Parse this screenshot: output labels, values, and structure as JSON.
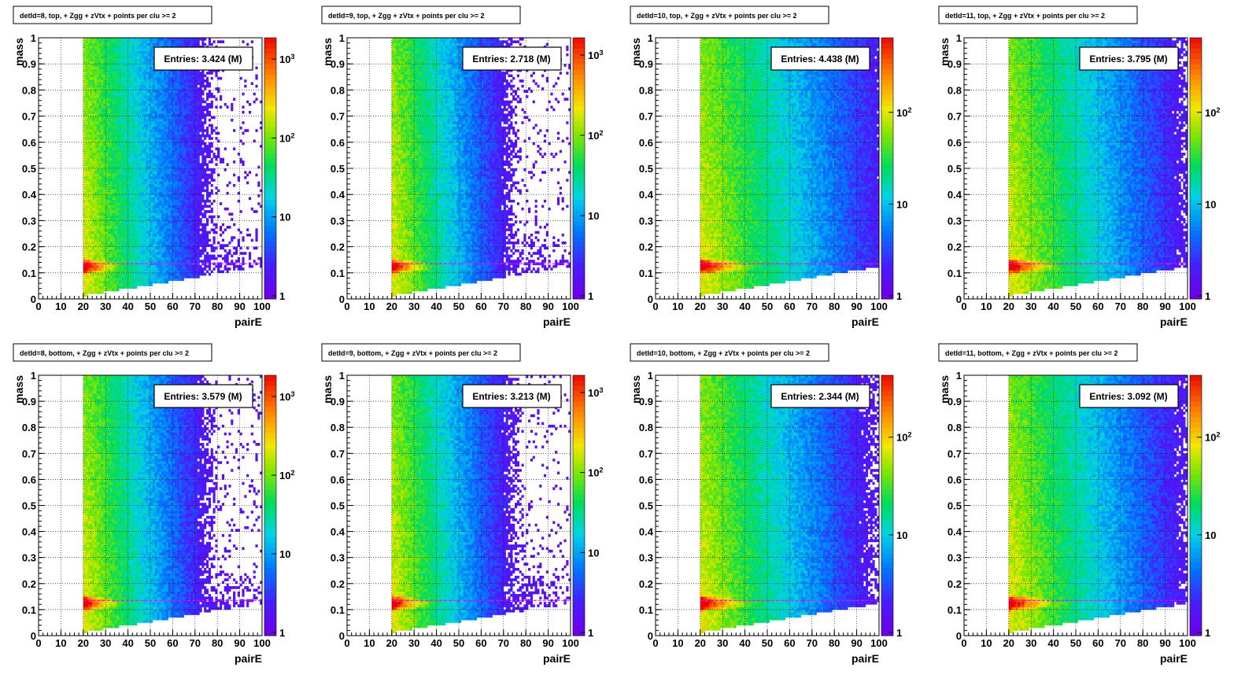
{
  "figure": {
    "description_free": true
  },
  "common": {
    "xlabel": "pairE",
    "ylabel": "mass",
    "x_ticks": [
      "0",
      "10",
      "20",
      "30",
      "40",
      "50",
      "60",
      "70",
      "80",
      "90",
      "100"
    ],
    "y_ticks": [
      "0",
      "0.1",
      "0.2",
      "0.3",
      "0.4",
      "0.5",
      "0.6",
      "0.7",
      "0.8",
      "0.9",
      "1"
    ],
    "reference_line_mass": 0.135,
    "reference_line_color": "#ff00ff"
  },
  "chart_data": [
    {
      "type": "heatmap",
      "title": "detId=8, top, + Zgg + zVtx + points per clu >= 2",
      "entries": "Entries: 3.424 (M)",
      "xlabel": "pairE",
      "ylabel": "mass",
      "xlim": [
        0,
        100
      ],
      "ylim": [
        0,
        1
      ],
      "z_log": true,
      "z_range": [
        1,
        1700
      ],
      "colorbar_ticks": [
        "1",
        "10",
        "10^2",
        "10^3"
      ],
      "spread": 0.45
    },
    {
      "type": "heatmap",
      "title": "detId=9, top, + Zgg + zVtx + points per clu >= 2",
      "entries": "Entries: 2.718 (M)",
      "xlabel": "pairE",
      "ylabel": "mass",
      "xlim": [
        0,
        100
      ],
      "ylim": [
        0,
        1
      ],
      "z_log": true,
      "z_range": [
        1,
        1500
      ],
      "colorbar_ticks": [
        "1",
        "10",
        "10^2",
        "10^3"
      ],
      "spread": 0.4
    },
    {
      "type": "heatmap",
      "title": "detId=10, top, + Zgg + zVtx + points per clu >= 2",
      "entries": "Entries: 4.438 (M)",
      "xlabel": "pairE",
      "ylabel": "mass",
      "xlim": [
        0,
        100
      ],
      "ylim": [
        0,
        1
      ],
      "z_log": true,
      "z_range": [
        1,
        600
      ],
      "colorbar_ticks": [
        "1",
        "10",
        "10^2"
      ],
      "spread": 1.0
    },
    {
      "type": "heatmap",
      "title": "detId=11, top, + Zgg + zVtx + points per clu >= 2",
      "entries": "Entries: 3.795 (M)",
      "xlabel": "pairE",
      "ylabel": "mass",
      "xlim": [
        0,
        100
      ],
      "ylim": [
        0,
        1
      ],
      "z_log": true,
      "z_range": [
        1,
        600
      ],
      "colorbar_ticks": [
        "1",
        "10",
        "10^2"
      ],
      "spread": 0.9
    },
    {
      "type": "heatmap",
      "title": "detId=8, bottom, + Zgg + zVtx + points per clu >= 2",
      "entries": "Entries: 3.579 (M)",
      "xlabel": "pairE",
      "ylabel": "mass",
      "xlim": [
        0,
        100
      ],
      "ylim": [
        0,
        1
      ],
      "z_log": true,
      "z_range": [
        1,
        1700
      ],
      "colorbar_ticks": [
        "1",
        "10",
        "10^2",
        "10^3"
      ],
      "spread": 0.45
    },
    {
      "type": "heatmap",
      "title": "detId=9, bottom, + Zgg + zVtx + points per clu >= 2",
      "entries": "Entries: 3.213 (M)",
      "xlabel": "pairE",
      "ylabel": "mass",
      "xlim": [
        0,
        100
      ],
      "ylim": [
        0,
        1
      ],
      "z_log": true,
      "z_range": [
        1,
        1500
      ],
      "colorbar_ticks": [
        "1",
        "10",
        "10^2",
        "10^3"
      ],
      "spread": 0.42
    },
    {
      "type": "heatmap",
      "title": "detId=10, bottom, + Zgg + zVtx + points per clu >= 2",
      "entries": "Entries: 2.344 (M)",
      "xlabel": "pairE",
      "ylabel": "mass",
      "xlim": [
        0,
        100
      ],
      "ylim": [
        0,
        1
      ],
      "z_log": true,
      "z_range": [
        1,
        400
      ],
      "colorbar_ticks": [
        "1",
        "10",
        "10^2"
      ],
      "spread": 0.85
    },
    {
      "type": "heatmap",
      "title": "detId=11, bottom, + Zgg + zVtx + points per clu >= 2",
      "entries": "Entries: 3.092 (M)",
      "xlabel": "pairE",
      "ylabel": "mass",
      "xlim": [
        0,
        100
      ],
      "ylim": [
        0,
        1
      ],
      "z_log": true,
      "z_range": [
        1,
        400
      ],
      "colorbar_ticks": [
        "1",
        "10",
        "10^2"
      ],
      "spread": 0.9
    }
  ]
}
